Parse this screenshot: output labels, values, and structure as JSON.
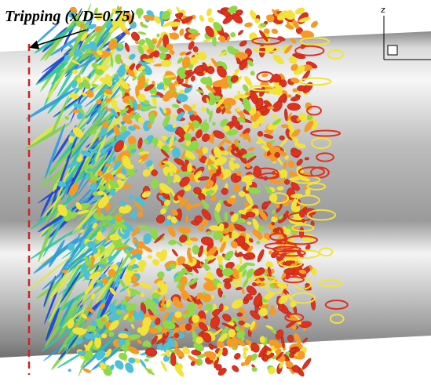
{
  "annotation": {
    "label": "Tripping (x/D=0.75)"
  },
  "axes": {
    "z_label": "z"
  }
}
